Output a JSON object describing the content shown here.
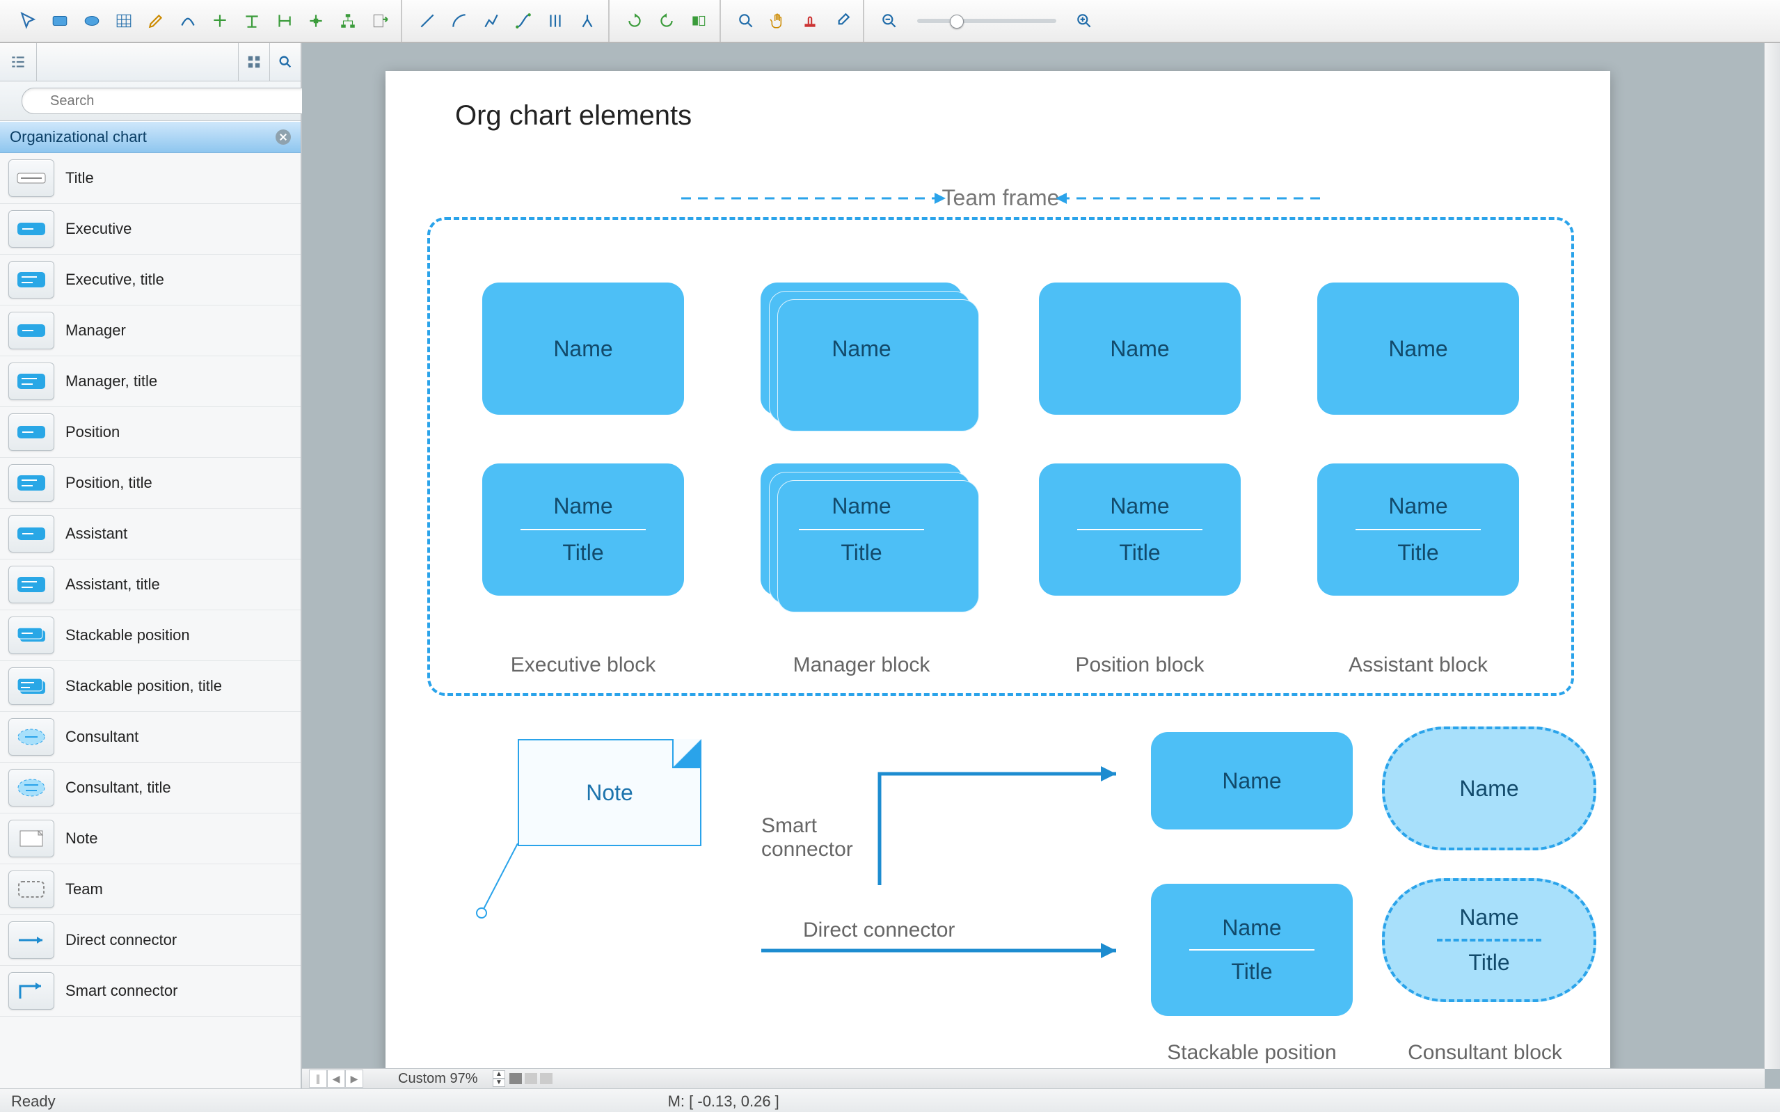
{
  "toolbar": {
    "groups": [
      [
        "pointer",
        "rect",
        "oval",
        "table",
        "edit",
        "curve",
        "branch-l",
        "branch-t",
        "branch-r",
        "branch-hub",
        "tree",
        "export"
      ],
      [
        "line",
        "arc",
        "poly",
        "bezier",
        "multi",
        "split"
      ],
      [
        "rotate-cw",
        "rotate-ccw",
        "flip"
      ],
      [
        "zoom-in-tool",
        "pan-tool",
        "stamp-tool",
        "eyedrop-tool"
      ]
    ]
  },
  "zoom": {
    "out_icon": "−",
    "in_icon": "+",
    "slider_pos": 0.28
  },
  "sidebar": {
    "search_placeholder": "Search",
    "section_title": "Organizational chart",
    "items": [
      {
        "label": "Title",
        "thumb": "title"
      },
      {
        "label": "Executive",
        "thumb": "solid"
      },
      {
        "label": "Executive, title",
        "thumb": "solid-t"
      },
      {
        "label": "Manager",
        "thumb": "solid"
      },
      {
        "label": "Manager, title",
        "thumb": "solid-t"
      },
      {
        "label": "Position",
        "thumb": "solid"
      },
      {
        "label": "Position, title",
        "thumb": "solid-t"
      },
      {
        "label": "Assistant",
        "thumb": "solid"
      },
      {
        "label": "Assistant, title",
        "thumb": "solid-t"
      },
      {
        "label": "Stackable position",
        "thumb": "stack"
      },
      {
        "label": "Stackable position, title",
        "thumb": "stack-t"
      },
      {
        "label": "Consultant",
        "thumb": "oval"
      },
      {
        "label": "Consultant, title",
        "thumb": "oval-t"
      },
      {
        "label": "Note",
        "thumb": "note"
      },
      {
        "label": "Team",
        "thumb": "team"
      },
      {
        "label": "Direct connector",
        "thumb": "direct"
      },
      {
        "label": "Smart connector",
        "thumb": "smart"
      }
    ]
  },
  "canvas": {
    "page_title": "Org chart elements",
    "team_frame_label": "Team frame",
    "grid": {
      "row1": [
        {
          "kind": "plain",
          "l1": "Name"
        },
        {
          "kind": "stack",
          "l1": "Name"
        },
        {
          "kind": "plain",
          "l1": "Name"
        },
        {
          "kind": "plain",
          "l1": "Name"
        }
      ],
      "row2": [
        {
          "kind": "plain",
          "l1": "Name",
          "l2": "Title"
        },
        {
          "kind": "stack",
          "l1": "Name",
          "l2": "Title"
        },
        {
          "kind": "plain",
          "l1": "Name",
          "l2": "Title"
        },
        {
          "kind": "plain",
          "l1": "Name",
          "l2": "Title"
        }
      ],
      "captions": [
        "Executive block",
        "Manager block",
        "Position block",
        "Assistant block"
      ]
    },
    "note_label": "Note",
    "smart_label": "Smart connector",
    "direct_label": "Direct connector",
    "lower": {
      "stack_name": "Name",
      "stack_nt_name": "Name",
      "stack_nt_title": "Title",
      "cons_name": "Name",
      "cons_nt_name": "Name",
      "cons_nt_title": "Title",
      "cap_stack": "Stackable position block",
      "cap_cons": "Consultant block"
    },
    "colors": {
      "block_fill": "#4dbff6",
      "block_text": "#124a6b",
      "oval_fill": "#a8e0fb",
      "dash_stroke": "#2aa3ea",
      "connector": "#1d8cd0",
      "caption": "#666666"
    }
  },
  "hscroll": {
    "zoom_label": "Custom 97%"
  },
  "status": {
    "ready": "Ready",
    "mcoord": "M: [ -0.13, 0.26 ]"
  }
}
